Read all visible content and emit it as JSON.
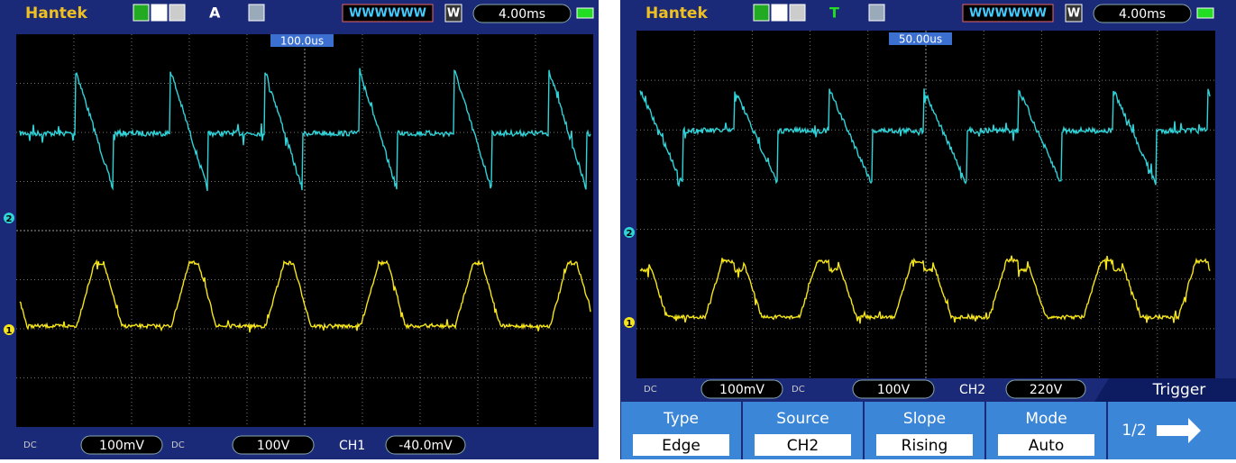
{
  "screens": [
    {
      "brand": "Hantek",
      "trigger_mode_label": "A",
      "waveform_indicator": "WWWWWW",
      "w_label": "W",
      "timebase": "4.00ms",
      "trigger_position": "100.0us",
      "ch2_marker": "2",
      "ch1_marker": "1",
      "ch1": {
        "coupling": "DC",
        "scale": "100mV"
      },
      "ch2": {
        "coupling": "DC",
        "scale": "100V"
      },
      "trigger": {
        "source": "CH1",
        "level": "-40.0mV"
      }
    },
    {
      "brand": "Hantek",
      "trigger_mode_label": "T",
      "waveform_indicator": "WWWWWW",
      "w_label": "W",
      "timebase": "4.00ms",
      "trigger_position": "50.00us",
      "ch2_marker": "2",
      "ch1_marker": "1",
      "ch1": {
        "coupling": "DC",
        "scale": "100mV"
      },
      "ch2": {
        "coupling": "DC",
        "scale": "100V"
      },
      "trigger": {
        "source": "CH2",
        "level": "220V"
      },
      "menu": {
        "title": "Trigger",
        "page": "1/2",
        "items": [
          {
            "label": "Type",
            "value": "Edge"
          },
          {
            "label": "Source",
            "value": "CH2"
          },
          {
            "label": "Slope",
            "value": "Rising"
          },
          {
            "label": "Mode",
            "value": "Auto"
          }
        ]
      }
    }
  ]
}
